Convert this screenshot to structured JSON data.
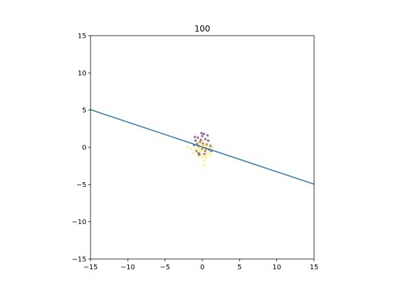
{
  "chart_data": {
    "type": "scatter",
    "title": "100",
    "xlabel": "",
    "ylabel": "",
    "xlim": [
      -15,
      15
    ],
    "ylim": [
      -15,
      15
    ],
    "xticks": [
      -15,
      -10,
      -5,
      0,
      5,
      10,
      15
    ],
    "yticks": [
      -15,
      -10,
      -5,
      0,
      5,
      10,
      15
    ],
    "xtick_labels": [
      "−15",
      "−10",
      "−5",
      "0",
      "5",
      "10",
      "15"
    ],
    "ytick_labels": [
      "−15",
      "−10",
      "−5",
      "0",
      "5",
      "10",
      "15"
    ],
    "grid": false,
    "colors": {
      "line": "#1f77b4",
      "class_0": "#440154",
      "class_1": "#fde725"
    },
    "line": {
      "x": [
        -15,
        15
      ],
      "y": [
        5.05,
        -4.95
      ]
    },
    "series": [
      {
        "class": 0,
        "points": [
          [
            0.2,
            1.8
          ],
          [
            -0.6,
            1.3
          ],
          [
            0.0,
            1.5
          ],
          [
            -0.9,
            0.9
          ],
          [
            0.4,
            1.1
          ],
          [
            -0.3,
            0.7
          ],
          [
            0.8,
            0.9
          ],
          [
            -1.1,
            0.3
          ],
          [
            0.6,
            0.4
          ],
          [
            -0.5,
            0.2
          ],
          [
            0.1,
            0.5
          ],
          [
            -0.2,
            1.0
          ],
          [
            0.9,
            -0.3
          ],
          [
            -0.8,
            -0.5
          ],
          [
            0.3,
            -0.9
          ],
          [
            -0.4,
            -1.0
          ],
          [
            1.1,
            0.2
          ],
          [
            0.5,
            -0.2
          ],
          [
            -1.0,
            1.4
          ],
          [
            0.7,
            1.6
          ],
          [
            -0.1,
            1.9
          ],
          [
            0.4,
            -0.5
          ],
          [
            -0.7,
            0.5
          ],
          [
            0.0,
            -0.2
          ],
          [
            1.2,
            -0.5
          ],
          [
            -0.5,
            -0.8
          ]
        ]
      },
      {
        "class": 1,
        "points": [
          [
            0.1,
            -0.3
          ],
          [
            -0.4,
            -0.1
          ],
          [
            0.3,
            0.2
          ],
          [
            -0.2,
            -0.6
          ],
          [
            0.5,
            -0.4
          ],
          [
            -0.7,
            0.0
          ],
          [
            0.2,
            0.4
          ],
          [
            -0.1,
            -0.9
          ],
          [
            0.6,
            0.1
          ],
          [
            -0.5,
            0.3
          ],
          [
            0.0,
            -1.3
          ],
          [
            0.4,
            -1.1
          ],
          [
            -0.9,
            -0.4
          ],
          [
            1.0,
            -0.1
          ],
          [
            -0.3,
            0.6
          ],
          [
            0.2,
            -1.8
          ],
          [
            0.5,
            -1.4
          ],
          [
            -1.2,
            -0.8
          ],
          [
            -2.0,
            0.0
          ],
          [
            0.8,
            -0.8
          ],
          [
            0.3,
            -2.4
          ],
          [
            -0.6,
            -1.2
          ],
          [
            1.4,
            0.0
          ],
          [
            0.0,
            0.1
          ],
          [
            -0.3,
            -0.4
          ],
          [
            0.7,
            0.5
          ],
          [
            -0.8,
            0.6
          ],
          [
            0.1,
            0.8
          ],
          [
            -1.5,
            -0.2
          ],
          [
            1.1,
            -1.0
          ]
        ]
      }
    ]
  }
}
